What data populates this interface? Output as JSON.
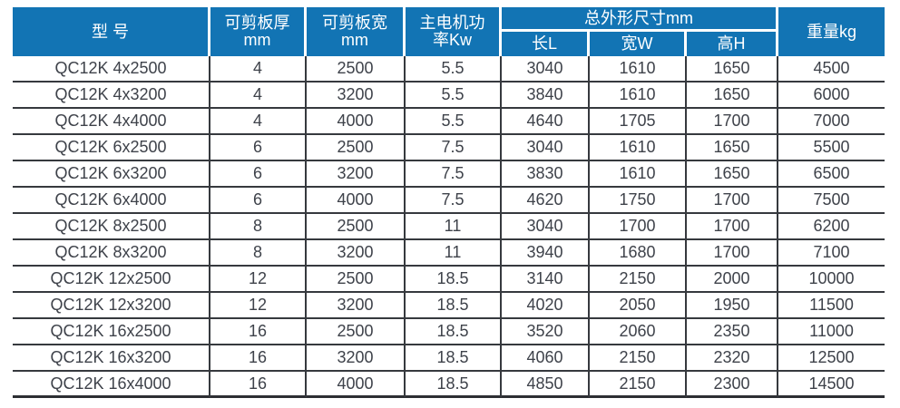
{
  "colors": {
    "header_bg": "#1274b4",
    "header_text": "#ffffff",
    "body_text": "#3e424a",
    "grid_line": "#36393e",
    "grid_line_heavy": "#2d2f33"
  },
  "table": {
    "header": {
      "model": "型 号",
      "thickness_line1": "可剪板厚",
      "thickness_line2": "mm",
      "width_line1": "可剪板宽",
      "width_line2": "mm",
      "power_line1": "主电机功",
      "power_line2": "率Kw",
      "dims_group": "总外形尺寸mm",
      "dims_length": "长L",
      "dims_width": "宽W",
      "dims_height": "高H",
      "weight": "重量kg"
    },
    "rows": [
      [
        "QC12K 4x2500",
        "4",
        "2500",
        "5.5",
        "3040",
        "1610",
        "1650",
        "4500"
      ],
      [
        "QC12K 4x3200",
        "4",
        "3200",
        "5.5",
        "3840",
        "1610",
        "1650",
        "6000"
      ],
      [
        "QC12K 4x4000",
        "4",
        "4000",
        "5.5",
        "4640",
        "1705",
        "1700",
        "7000"
      ],
      [
        "QC12K 6x2500",
        "6",
        "2500",
        "7.5",
        "3040",
        "1610",
        "1650",
        "5500"
      ],
      [
        "QC12K 6x3200",
        "6",
        "3200",
        "7.5",
        "3830",
        "1610",
        "1650",
        "6500"
      ],
      [
        "QC12K 6x4000",
        "6",
        "4000",
        "7.5",
        "4620",
        "1750",
        "1700",
        "7500"
      ],
      [
        "QC12K 8x2500",
        "8",
        "2500",
        "11",
        "3040",
        "1700",
        "1700",
        "6200"
      ],
      [
        "QC12K 8x3200",
        "8",
        "3200",
        "11",
        "3940",
        "1680",
        "1700",
        "7100"
      ],
      [
        "QC12K 12x2500",
        "12",
        "2500",
        "18.5",
        "3140",
        "2150",
        "2000",
        "10000"
      ],
      [
        "QC12K 12x3200",
        "12",
        "3200",
        "18.5",
        "4020",
        "2050",
        "1950",
        "11500"
      ],
      [
        "QC12K 16x2500",
        "16",
        "2500",
        "18.5",
        "3520",
        "2060",
        "2350",
        "11000"
      ],
      [
        "QC12K 16x3200",
        "16",
        "3200",
        "18.5",
        "4060",
        "2150",
        "2320",
        "12500"
      ],
      [
        "QC12K 16x4000",
        "16",
        "4000",
        "18.5",
        "4850",
        "2150",
        "2300",
        "14500"
      ]
    ]
  }
}
